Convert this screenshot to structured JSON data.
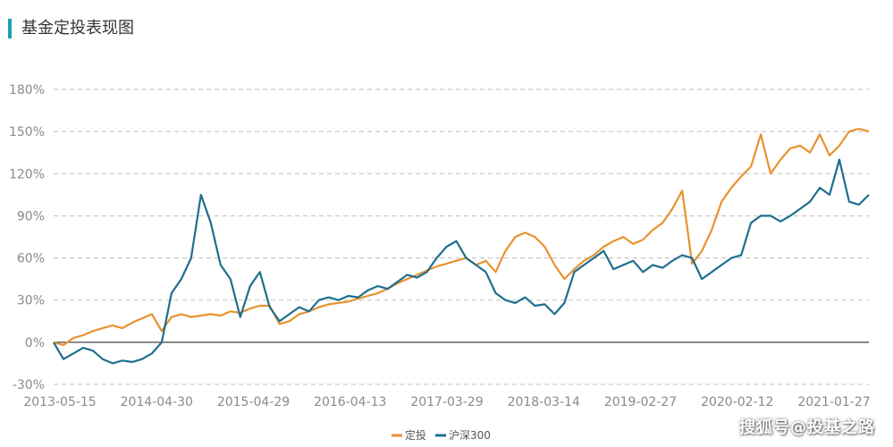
{
  "title": "基金定投表现图",
  "watermark": "搜狐号@投基之路",
  "chart_data": {
    "type": "line",
    "title": "基金定投表现图",
    "xlabel": "",
    "ylabel": "",
    "ylim": [
      -30,
      180
    ],
    "yticks": [
      -30,
      0,
      30,
      60,
      90,
      120,
      150,
      180
    ],
    "ytick_labels": [
      "-30%",
      "0%",
      "30%",
      "60%",
      "90%",
      "120%",
      "150%",
      "180%"
    ],
    "xticks": [
      "2013-05-15",
      "2014-04-30",
      "2015-04-29",
      "2016-04-13",
      "2017-03-29",
      "2018-03-14",
      "2019-02-27",
      "2020-02-12",
      "2021-01-27"
    ],
    "grid": true,
    "legend_position": "bottom-center",
    "x": [
      0.0,
      0.1,
      0.2,
      0.3,
      0.4,
      0.5,
      0.6,
      0.7,
      0.8,
      0.9,
      1.0,
      1.1,
      1.2,
      1.3,
      1.4,
      1.5,
      1.6,
      1.7,
      1.8,
      1.9,
      2.0,
      2.1,
      2.2,
      2.3,
      2.4,
      2.5,
      2.6,
      2.7,
      2.8,
      2.9,
      3.0,
      3.1,
      3.2,
      3.3,
      3.4,
      3.5,
      3.6,
      3.7,
      3.8,
      3.9,
      4.0,
      4.1,
      4.2,
      4.3,
      4.4,
      4.5,
      4.6,
      4.7,
      4.8,
      4.9,
      5.0,
      5.1,
      5.2,
      5.3,
      5.4,
      5.5,
      5.6,
      5.7,
      5.8,
      5.9,
      6.0,
      6.1,
      6.2,
      6.3,
      6.4,
      6.5,
      6.6,
      6.7,
      6.8,
      6.9,
      7.0,
      7.1,
      7.2,
      7.3,
      7.4,
      7.5,
      7.6,
      7.7,
      7.8,
      7.9,
      8.0,
      8.1,
      8.2,
      8.3
    ],
    "series": [
      {
        "name": "定投",
        "color": "#e8922e",
        "values": [
          0,
          -2,
          3,
          5,
          8,
          10,
          12,
          10,
          14,
          17,
          20,
          8,
          18,
          20,
          18,
          19,
          20,
          19,
          22,
          21,
          24,
          26,
          26,
          13,
          15,
          20,
          22,
          25,
          27,
          28,
          29,
          31,
          33,
          35,
          38,
          42,
          45,
          48,
          51,
          54,
          56,
          58,
          60,
          55,
          58,
          50,
          65,
          75,
          78,
          75,
          68,
          55,
          45,
          52,
          58,
          62,
          68,
          72,
          75,
          70,
          73,
          80,
          85,
          95,
          108,
          56,
          65,
          80,
          100,
          110,
          118,
          125,
          148,
          120,
          130,
          138,
          140,
          135,
          148,
          133,
          140,
          150,
          152,
          150
        ]
      },
      {
        "name": "沪深300",
        "color": "#1e6f8e",
        "values": [
          0,
          -12,
          -8,
          -4,
          -6,
          -12,
          -15,
          -13,
          -14,
          -12,
          -8,
          0,
          35,
          45,
          60,
          105,
          85,
          55,
          45,
          18,
          40,
          50,
          25,
          15,
          20,
          25,
          22,
          30,
          32,
          30,
          33,
          32,
          37,
          40,
          38,
          43,
          48,
          46,
          50,
          60,
          68,
          72,
          60,
          55,
          50,
          35,
          30,
          28,
          32,
          26,
          27,
          20,
          28,
          50,
          55,
          60,
          65,
          52,
          55,
          58,
          50,
          55,
          53,
          58,
          62,
          60,
          45,
          50,
          55,
          60,
          62,
          85,
          90,
          90,
          86,
          90,
          95,
          100,
          110,
          105,
          130,
          100,
          98,
          105
        ]
      }
    ]
  }
}
